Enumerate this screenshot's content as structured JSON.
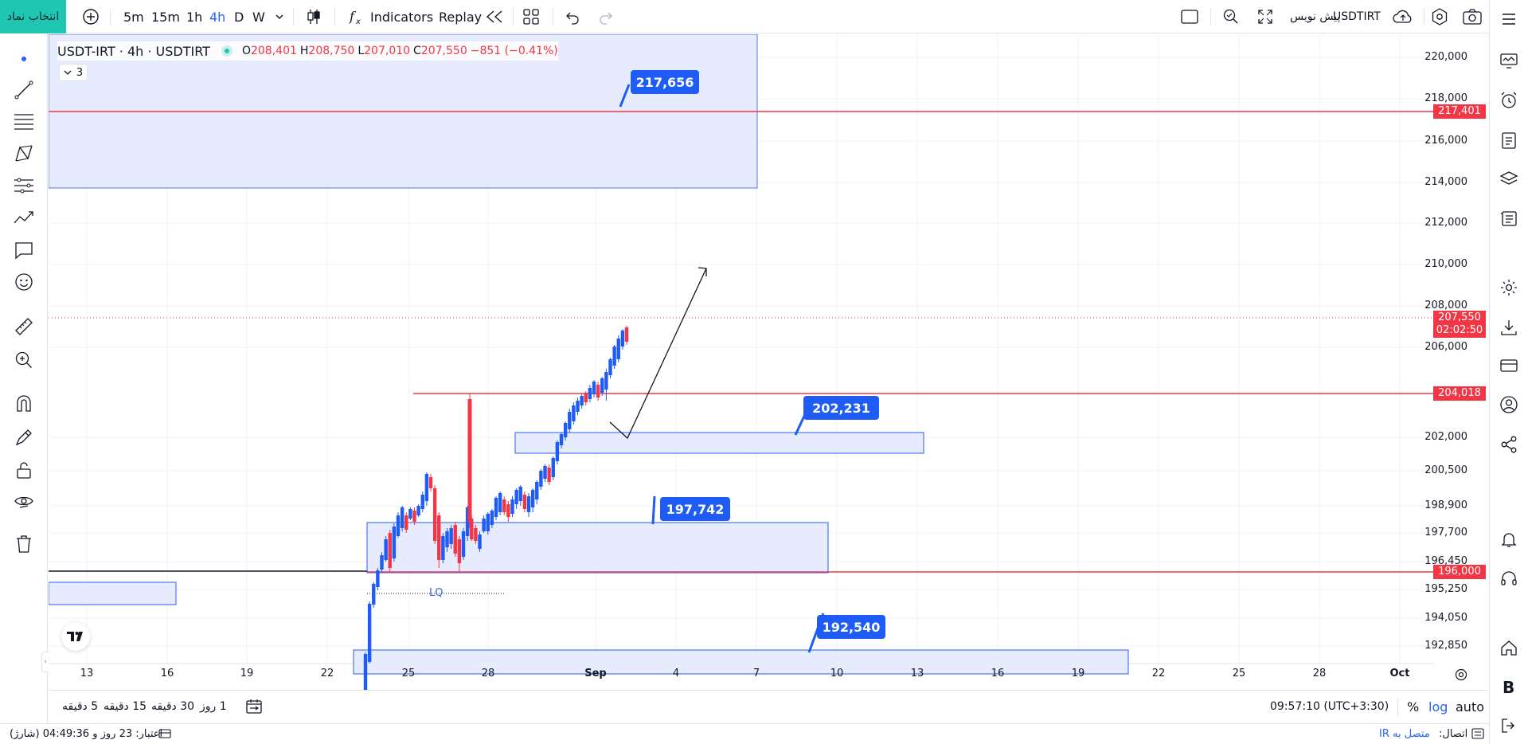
{
  "topbar": {
    "symbol_search_label": "انتخاب نماد",
    "intervals": [
      "5m",
      "15m",
      "1h",
      "4h",
      "D",
      "W"
    ],
    "active_interval": "4h",
    "indicators_label": "Indicators",
    "replay_label": "Replay",
    "symbol_name": "USDTIRT",
    "draft_label": "پیش نویس"
  },
  "legend": {
    "title": "USDT-IRT · 4h · USDTIRT",
    "open_key": "O",
    "open": "208,401",
    "high_key": "H",
    "high": "208,750",
    "low_key": "L",
    "low": "207,010",
    "close_key": "C",
    "close": "207,550",
    "change": "−851 (−0.41%)",
    "collapsed_count": "3"
  },
  "price_axis": {
    "labels": [
      "220,000",
      "218,000",
      "216,000",
      "214,000",
      "212,000",
      "210,000",
      "208,000",
      "206,000",
      "202,000",
      "200,500",
      "198,900",
      "197,700",
      "196,450",
      "195,250",
      "194,050",
      "192,850"
    ],
    "badges": {
      "level_217401": "217,401",
      "last_price": "207,550",
      "countdown": "02:02:50",
      "level_204018": "204,018",
      "level_196000": "196,000"
    }
  },
  "time_axis": {
    "labels": [
      "13",
      "16",
      "19",
      "22",
      "25",
      "28",
      "Sep",
      "4",
      "7",
      "10",
      "13",
      "16",
      "19",
      "22",
      "25",
      "28",
      "Oct"
    ]
  },
  "annotations": {
    "callouts": [
      "217,656",
      "202,231",
      "197,742",
      "192,540"
    ],
    "lq_label": "LQ"
  },
  "bottombar": {
    "ranges": [
      "5 دقیقه",
      "15 دقیقه",
      "30 دقیقه",
      "1 روز"
    ],
    "clock": "09:57:10 (UTC+3:30)",
    "percent_label": "%",
    "log_label": "log",
    "auto_label": "auto"
  },
  "statusbar": {
    "credit": "اعتبار: 23 روز و 04:49:36 (شارژ)",
    "connection_key": "اتصال:",
    "connection_value": "متصل به IR"
  },
  "colors": {
    "up": "#1e5cf5",
    "down": "#f23645",
    "zone_fill": "#e6ecfd",
    "zone_border": "#4b74ee",
    "accent_teal": "#1fc7b2"
  }
}
